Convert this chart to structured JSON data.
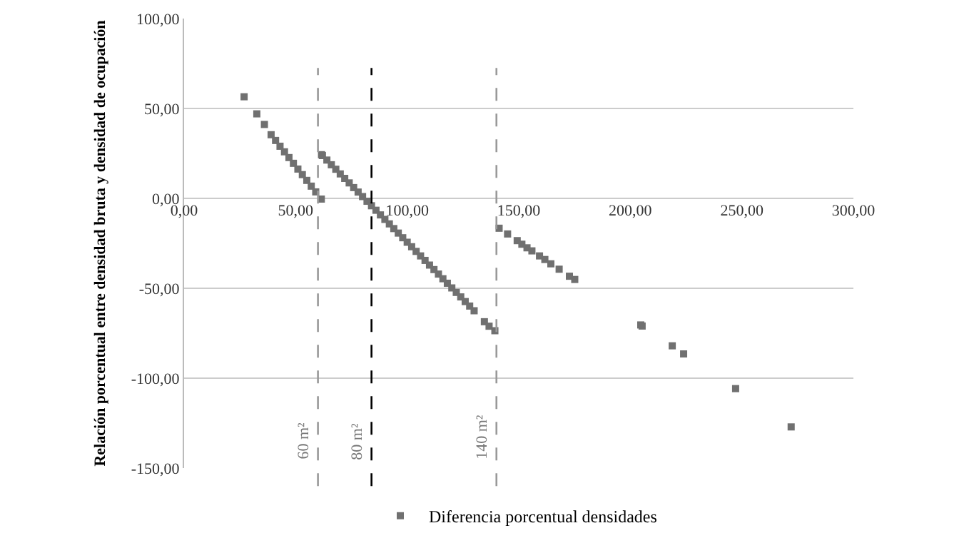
{
  "chart_data": {
    "type": "scatter",
    "ylabel": "Relación porcentual entre densidad bruta y densidad de ocupación",
    "x": [
      26.9,
      32.6,
      36.0,
      39,
      41,
      43,
      45,
      47,
      49,
      51,
      53,
      55,
      57,
      59,
      61.5,
      61.6,
      62,
      64,
      66,
      68,
      70,
      72,
      74,
      76,
      78,
      80,
      82,
      84,
      86,
      88,
      90,
      92,
      94,
      96,
      98,
      100,
      102,
      104,
      106,
      108,
      110,
      112,
      114,
      116,
      118,
      120,
      122,
      124,
      126,
      128,
      130,
      134.6,
      136.7,
      139.3,
      141.2,
      145.0,
      149.3,
      151.4,
      153.7,
      155.9,
      159.3,
      161.7,
      164.4,
      168.1,
      172.7,
      175.1,
      204.7,
      205.3,
      218.8,
      223.9,
      247.2,
      272.1
    ],
    "series": [
      {
        "name": "Diferencia porcentual densidades",
        "color": "#707070",
        "values": [
          56.5,
          47.0,
          41.1,
          35.4,
          32.2,
          29.0,
          25.9,
          22.7,
          19.5,
          16.3,
          13.2,
          10.0,
          6.8,
          3.6,
          -0.4,
          24.3,
          23.8,
          21.3,
          18.7,
          16.2,
          13.6,
          11.1,
          8.6,
          6.0,
          3.5,
          1.0,
          -1.6,
          -4.1,
          -6.6,
          -9.2,
          -11.7,
          -14.2,
          -16.8,
          -19.3,
          -21.9,
          -24.4,
          -26.9,
          -29.5,
          -32.0,
          -34.5,
          -37.1,
          -39.6,
          -42.1,
          -44.7,
          -47.2,
          -49.8,
          -52.3,
          -54.8,
          -57.4,
          -59.9,
          -62.5,
          -68.6,
          -71.1,
          -73.6,
          -16.6,
          -19.8,
          -23.5,
          -25.5,
          -27.5,
          -29.2,
          -32.0,
          -34.0,
          -36.4,
          -39.4,
          -43.3,
          -45.1,
          -70.4,
          -71.0,
          -82.0,
          -86.5,
          -105.8,
          -127.1
        ]
      }
    ],
    "xlim": [
      0,
      300
    ],
    "xticks": [
      {
        "value": 0,
        "label": "0,00"
      },
      {
        "value": 50,
        "label": "50,00"
      },
      {
        "value": 100,
        "label": "100,00"
      },
      {
        "value": 150,
        "label": "150,00"
      },
      {
        "value": 200,
        "label": "200,00"
      },
      {
        "value": 250,
        "label": "250,00"
      },
      {
        "value": 300,
        "label": "300,00"
      }
    ],
    "ylim": [
      -150,
      100
    ],
    "yticks": [
      {
        "value": -150,
        "label": "-150,00"
      },
      {
        "value": -100,
        "label": "-100,00"
      },
      {
        "value": -50,
        "label": "-50,00"
      },
      {
        "value": 0,
        "label": "0,00"
      },
      {
        "value": 50,
        "label": "50,00"
      },
      {
        "value": 100,
        "label": "100,00"
      }
    ],
    "ref_lines": [
      {
        "axis": "x",
        "value": 60,
        "label": "60 m²",
        "color": "#999999",
        "line_style": "dashed"
      },
      {
        "axis": "x",
        "value": 84,
        "label": "80 m²",
        "color": "#000000",
        "line_style": "dashed"
      },
      {
        "axis": "x",
        "value": 140,
        "label": "140 m²",
        "color": "#999999",
        "line_style": "dashed"
      }
    ],
    "grid": "y",
    "legend": "bottom",
    "marker": "square"
  }
}
